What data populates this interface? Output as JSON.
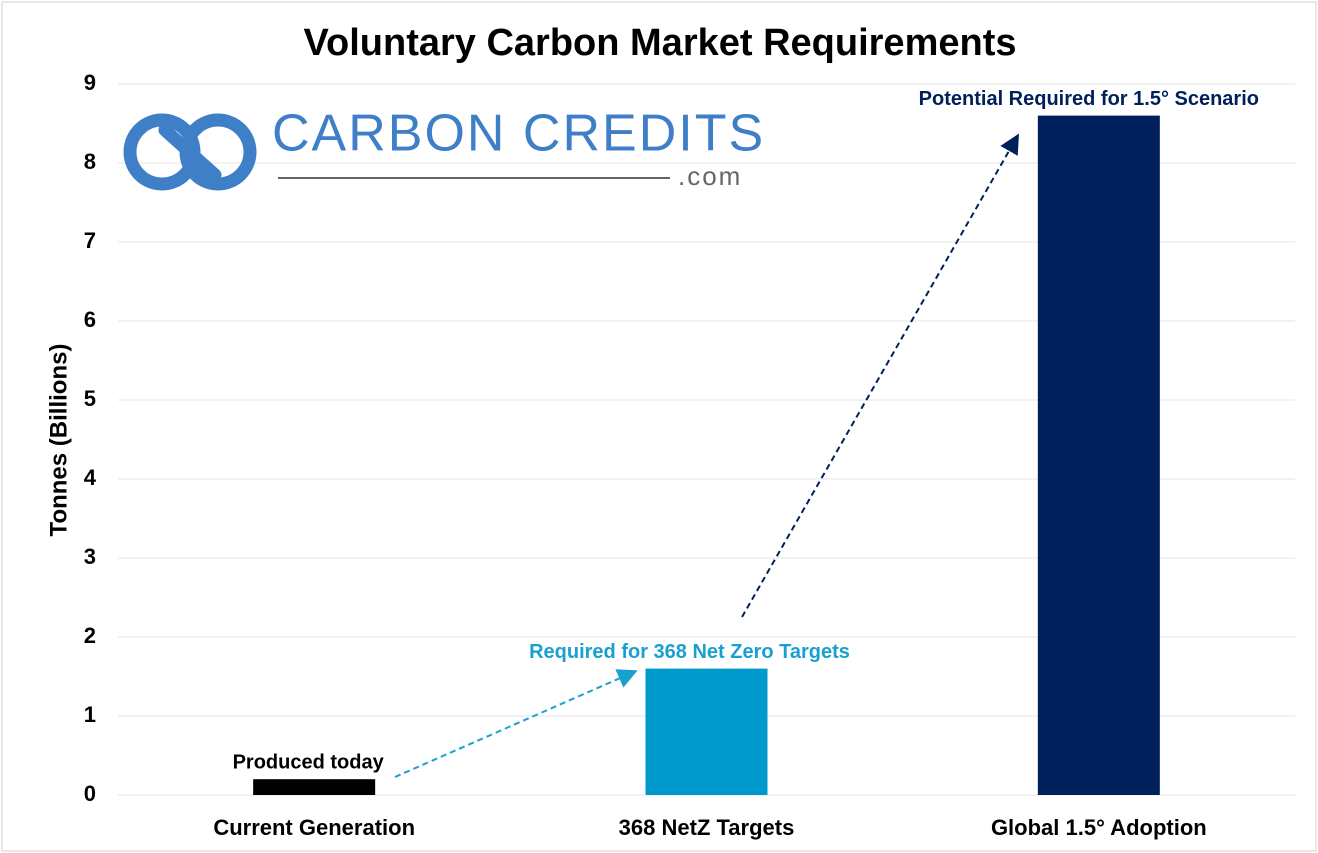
{
  "chart_data": {
    "type": "bar",
    "title": "Voluntary Carbon Market Requirements",
    "ylabel": "Tonnes (Billions)",
    "categories": [
      "Current Generation",
      "368 NetZ Targets",
      "Global 1.5° Adoption"
    ],
    "values": [
      0.2,
      1.6,
      8.6
    ],
    "colors": [
      "#000000",
      "#0099cc",
      "#00205b"
    ],
    "ylim": [
      0,
      9
    ],
    "yticks": [
      0,
      1,
      2,
      3,
      4,
      5,
      6,
      7,
      8,
      9
    ],
    "grid": true,
    "annotations": [
      "Produced today",
      "Required for 368 Net Zero Targets",
      "Potential Required for 1.5° Scenario"
    ],
    "logo": {
      "text": "CARBON CREDITS",
      "subtext": ".com"
    }
  }
}
